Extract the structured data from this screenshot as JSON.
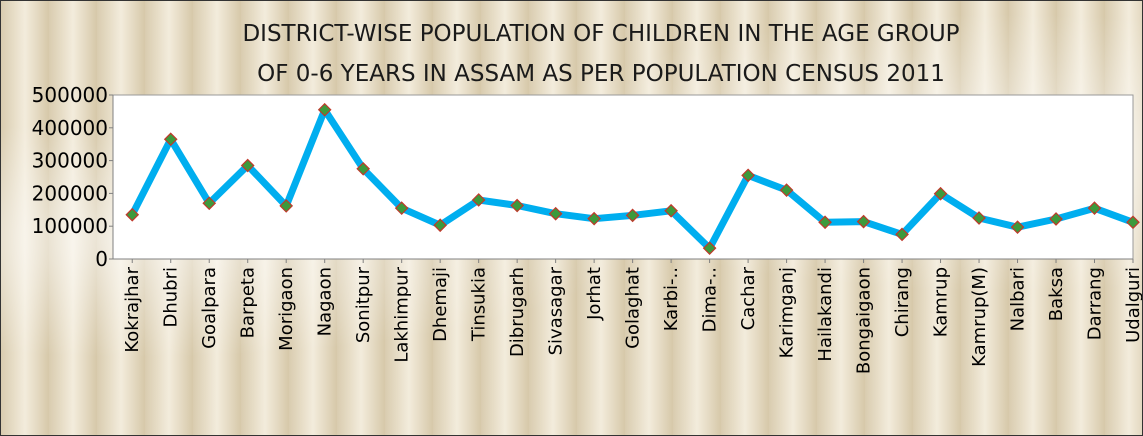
{
  "chart_data": {
    "type": "line",
    "title": "DISTRICT-WISE  POPULATION  OF CHILDREN  IN  THE AGE GROUP OF 0-6 YEARS IN ASSAM AS PER POPULATION  CENSUS 2011",
    "title_lines": [
      "DISTRICT-WISE  POPULATION  OF CHILDREN  IN  THE AGE GROUP",
      "OF 0-6 YEARS IN ASSAM AS PER POPULATION  CENSUS 2011"
    ],
    "xlabel": "",
    "ylabel": "",
    "ylim": [
      0,
      500000
    ],
    "yticks": [
      "0",
      "100000",
      "200000",
      "300000",
      "400000",
      "500000"
    ],
    "grid": false,
    "legend": "none",
    "line_color": "#00aeef",
    "marker_color": "#3c9a3c",
    "marker_edge_color": "#c0392b",
    "categories": [
      "Kokrajhar",
      "Dhubri",
      "Goalpara",
      "Barpeta",
      "Morigaon",
      "Nagaon",
      "Sonitpur",
      "Lakhimpur",
      "Dhemaji",
      "Tinsukia",
      "Dibrugarh",
      "Sivasagar",
      "Jorhat",
      "Golaghat",
      "Karbi-..",
      "Dima-..",
      "Cachar",
      "Karimganj",
      "Hailakandi",
      "Bongaigaon",
      "Chirang",
      "Kamrup",
      "Kamrup(M)",
      "Nalbari",
      "Baksa",
      "Darrang",
      "Udalguri"
    ],
    "series": [
      {
        "values": [
          135000,
          365000,
          170000,
          285000,
          162000,
          455000,
          275000,
          155000,
          103000,
          180000,
          163000,
          138000,
          123000,
          133000,
          147000,
          33000,
          255000,
          210000,
          112000,
          114000,
          75000,
          199000,
          125000,
          97000,
          122000,
          155000,
          112000
        ]
      }
    ]
  }
}
